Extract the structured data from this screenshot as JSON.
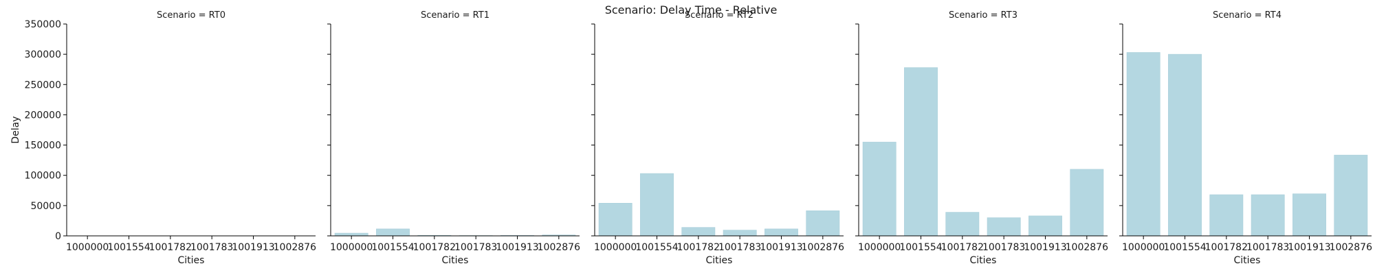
{
  "figure": {
    "suptitle": "Scenario: Delay Time - Relative",
    "bar_color": "#b4d7e1",
    "bar_edge_color": "#a9cfda"
  },
  "chart_data": [
    {
      "type": "bar",
      "title": "Scenario = RT0",
      "xlabel": "Cities",
      "ylabel": "Delay",
      "categories": [
        "1000000",
        "1001554",
        "1001782",
        "1001783",
        "1001913",
        "1002876"
      ],
      "values": [
        0,
        0,
        0,
        0,
        0,
        0
      ],
      "ylim": [
        0,
        350000
      ],
      "yticks": [
        "0",
        "50000",
        "100000",
        "150000",
        "200000",
        "250000",
        "300000",
        "350000"
      ]
    },
    {
      "type": "bar",
      "title": "Scenario = RT1",
      "xlabel": "Cities",
      "ylabel": "",
      "categories": [
        "1000000",
        "1001554",
        "1001782",
        "1001783",
        "1001913",
        "1002876"
      ],
      "values": [
        4500,
        11500,
        800,
        500,
        700,
        1500
      ],
      "ylim": [
        0,
        350000
      ]
    },
    {
      "type": "bar",
      "title": "Scenario = RT2",
      "xlabel": "Cities",
      "ylabel": "",
      "categories": [
        "1000000",
        "1001554",
        "1001782",
        "1001783",
        "1001913",
        "1002876"
      ],
      "values": [
        54000,
        103000,
        14000,
        9500,
        11500,
        41500
      ],
      "ylim": [
        0,
        350000
      ]
    },
    {
      "type": "bar",
      "title": "Scenario = RT3",
      "xlabel": "Cities",
      "ylabel": "",
      "categories": [
        "1000000",
        "1001554",
        "1001782",
        "1001783",
        "1001913",
        "1002876"
      ],
      "values": [
        155000,
        278000,
        39000,
        30000,
        33000,
        110000
      ],
      "ylim": [
        0,
        350000
      ]
    },
    {
      "type": "bar",
      "title": "Scenario = RT4",
      "xlabel": "Cities",
      "ylabel": "",
      "categories": [
        "1000000",
        "1001554",
        "1001782",
        "1001783",
        "1001913",
        "1002876"
      ],
      "values": [
        303000,
        300000,
        68000,
        68000,
        69500,
        133500
      ],
      "ylim": [
        0,
        350000
      ]
    }
  ]
}
